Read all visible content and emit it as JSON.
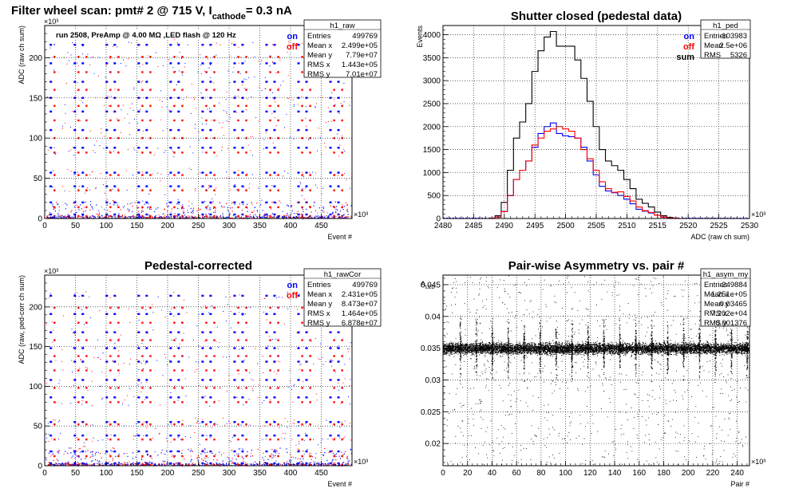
{
  "main_title": {
    "prefix": "Filter wheel scan: pmt#   2 @   715 V, I",
    "sub": "cathode",
    "suffix": "= 0.3 nA"
  },
  "colors": {
    "on": "#0000ff",
    "off": "#ff0000",
    "sum": "#000000"
  },
  "chart_data": [
    {
      "type": "scatter",
      "name": "raw",
      "title": "",
      "xlabel": "Event #",
      "ylabel": "ADC (raw ch sum)",
      "x_exponent": "×10³",
      "y_exponent": "×10³",
      "xlim": [
        0,
        500
      ],
      "ylim": [
        0,
        240
      ],
      "xticks": [
        "0",
        "50",
        "100",
        "150",
        "200",
        "250",
        "300",
        "350",
        "400",
        "450"
      ],
      "yticks": [
        "0",
        "50",
        "100",
        "150",
        "200"
      ],
      "note": "run 2508, PreAmp @ 4.00 MΩ ,LED flash @  120 Hz",
      "legend": [
        {
          "label": "on",
          "color": "#0000ff"
        },
        {
          "label": "off",
          "color": "#ff0000"
        }
      ],
      "stats": {
        "name": "h1_raw",
        "rows": [
          [
            "Entries",
            "499769"
          ],
          [
            "Mean x",
            "2.499e+05"
          ],
          [
            "Mean y",
            "7.79e+07"
          ],
          [
            "RMS x",
            "1.443e+05"
          ],
          [
            "RMS y",
            "7.01e+07"
          ]
        ]
      },
      "levels_on": [
        5,
        20,
        40,
        57,
        88,
        110,
        133,
        150,
        170,
        193,
        216
      ],
      "levels_off": [
        3,
        14,
        35,
        54,
        82,
        100,
        122,
        140,
        160,
        182,
        201
      ],
      "cluster_period": 26,
      "cluster_start": 10
    },
    {
      "type": "histogram",
      "name": "ped",
      "title": "Shutter closed (pedestal data)",
      "xlabel": "ADC (raw ch sum)",
      "ylabel": "Events",
      "y_exponent": "",
      "x_exponent": "×10³",
      "xlim": [
        2480,
        2530
      ],
      "ylim": [
        0,
        4200
      ],
      "xticks": [
        "2480",
        "2485",
        "2490",
        "2495",
        "2500",
        "2505",
        "2510",
        "2515",
        "2520",
        "2525",
        "2530"
      ],
      "yticks": [
        "0",
        "500",
        "1000",
        "1500",
        "2000",
        "2500",
        "3000",
        "3500",
        "4000"
      ],
      "legend": [
        {
          "label": "on",
          "color": "#0000ff"
        },
        {
          "label": "off",
          "color": "#ff0000"
        },
        {
          "label": "sum",
          "color": "#000000"
        }
      ],
      "stats": {
        "name": "h1_ped",
        "rows": [
          [
            "Entries",
            "103983"
          ],
          [
            "Mean",
            "2.5e+06"
          ],
          [
            "RMS",
            "5326"
          ]
        ]
      },
      "bin_width": 0.5,
      "series": [
        {
          "name": "sum",
          "color": "#000000",
          "x": [
            2487,
            2488,
            2489,
            2490,
            2491,
            2492,
            2493,
            2494,
            2495,
            2496,
            2497,
            2498,
            2499,
            2500,
            2501,
            2502,
            2503,
            2504,
            2505,
            2506,
            2507,
            2508,
            2509,
            2510,
            2511,
            2512,
            2513,
            2514,
            2515,
            2516,
            2517,
            2518,
            2519
          ],
          "y": [
            0,
            10,
            60,
            350,
            1050,
            1750,
            2100,
            2500,
            3200,
            3650,
            3950,
            4070,
            3750,
            3750,
            3750,
            3450,
            3050,
            2550,
            2000,
            1500,
            1250,
            1150,
            1050,
            850,
            650,
            420,
            330,
            250,
            140,
            60,
            25,
            10,
            0
          ]
        },
        {
          "name": "on",
          "color": "#0000ff",
          "x": [
            2487,
            2488,
            2489,
            2490,
            2491,
            2492,
            2493,
            2494,
            2495,
            2496,
            2497,
            2498,
            2499,
            2500,
            2501,
            2502,
            2503,
            2504,
            2505,
            2506,
            2507,
            2508,
            2509,
            2510,
            2511,
            2512,
            2513,
            2514,
            2515,
            2516,
            2517,
            2518,
            2519
          ],
          "y": [
            0,
            5,
            30,
            150,
            500,
            850,
            1050,
            1250,
            1550,
            1850,
            2000,
            2080,
            1850,
            1800,
            1780,
            1750,
            1550,
            1250,
            950,
            700,
            600,
            560,
            500,
            420,
            320,
            200,
            160,
            120,
            70,
            30,
            12,
            5,
            0
          ]
        },
        {
          "name": "off",
          "color": "#ff0000",
          "x": [
            2487,
            2488,
            2489,
            2490,
            2491,
            2492,
            2493,
            2494,
            2495,
            2496,
            2497,
            2498,
            2499,
            2500,
            2501,
            2502,
            2503,
            2504,
            2505,
            2506,
            2507,
            2508,
            2509,
            2510,
            2511,
            2512,
            2513,
            2514,
            2515,
            2516,
            2517,
            2518,
            2519
          ],
          "y": [
            0,
            5,
            30,
            150,
            500,
            850,
            1050,
            1250,
            1600,
            1750,
            1900,
            1950,
            2000,
            1950,
            1900,
            1750,
            1500,
            1300,
            1050,
            800,
            650,
            570,
            580,
            480,
            380,
            250,
            170,
            130,
            70,
            30,
            12,
            5,
            0
          ]
        }
      ]
    },
    {
      "type": "scatter",
      "name": "rawCor",
      "title": "Pedestal-corrected",
      "xlabel": "Event #",
      "ylabel": "ADC (raw, ped-corr ch sum)",
      "x_exponent": "×10³",
      "y_exponent": "×10³",
      "xlim": [
        0,
        500
      ],
      "ylim": [
        0,
        240
      ],
      "xticks": [
        "0",
        "50",
        "100",
        "150",
        "200",
        "250",
        "300",
        "350",
        "400",
        "450"
      ],
      "yticks": [
        "0",
        "50",
        "100",
        "150",
        "200"
      ],
      "legend": [
        {
          "label": "on",
          "color": "#0000ff"
        },
        {
          "label": "off",
          "color": "#ff0000"
        }
      ],
      "stats": {
        "name": "h1_rawCor",
        "rows": [
          [
            "Entries",
            "499769"
          ],
          [
            "Mean x",
            "2.431e+05"
          ],
          [
            "Mean y",
            "8.473e+07"
          ],
          [
            "RMS x",
            "1.464e+05"
          ],
          [
            "RMS y",
            "6.878e+07"
          ]
        ]
      },
      "levels_on": [
        3,
        18,
        38,
        55,
        86,
        108,
        131,
        148,
        168,
        191,
        214
      ],
      "levels_off": [
        1,
        12,
        33,
        52,
        80,
        98,
        120,
        138,
        158,
        180,
        199
      ],
      "cluster_period": 26,
      "cluster_start": 10
    },
    {
      "type": "scatter",
      "name": "asym",
      "title": "Pair-wise Asymmetry vs. pair #",
      "xlabel": "Pair #",
      "ylabel": "A",
      "ylabel_sub": "LED",
      "x_exponent": "×10³",
      "y_exponent": "",
      "xlim": [
        0,
        250
      ],
      "ylim": [
        0.0165,
        0.0465
      ],
      "xticks": [
        "0",
        "20",
        "40",
        "60",
        "80",
        "100",
        "120",
        "140",
        "160",
        "180",
        "200",
        "220",
        "240"
      ],
      "yticks": [
        "0.02",
        "0.025",
        "0.03",
        "0.035",
        "0.04",
        "0.045"
      ],
      "stats": {
        "name": "h1_asym_my",
        "rows": [
          [
            "Entries",
            "249884"
          ],
          [
            "Mean x",
            "1.251e+05"
          ],
          [
            "Mean y",
            "0.03465"
          ],
          [
            "RMS x",
            "7.202e+04"
          ],
          [
            "RMS y",
            "0.001376"
          ]
        ]
      },
      "band_center": 0.035,
      "band_halfwidth": 0.0012,
      "spike_period": 13,
      "spike_start": 14
    }
  ]
}
